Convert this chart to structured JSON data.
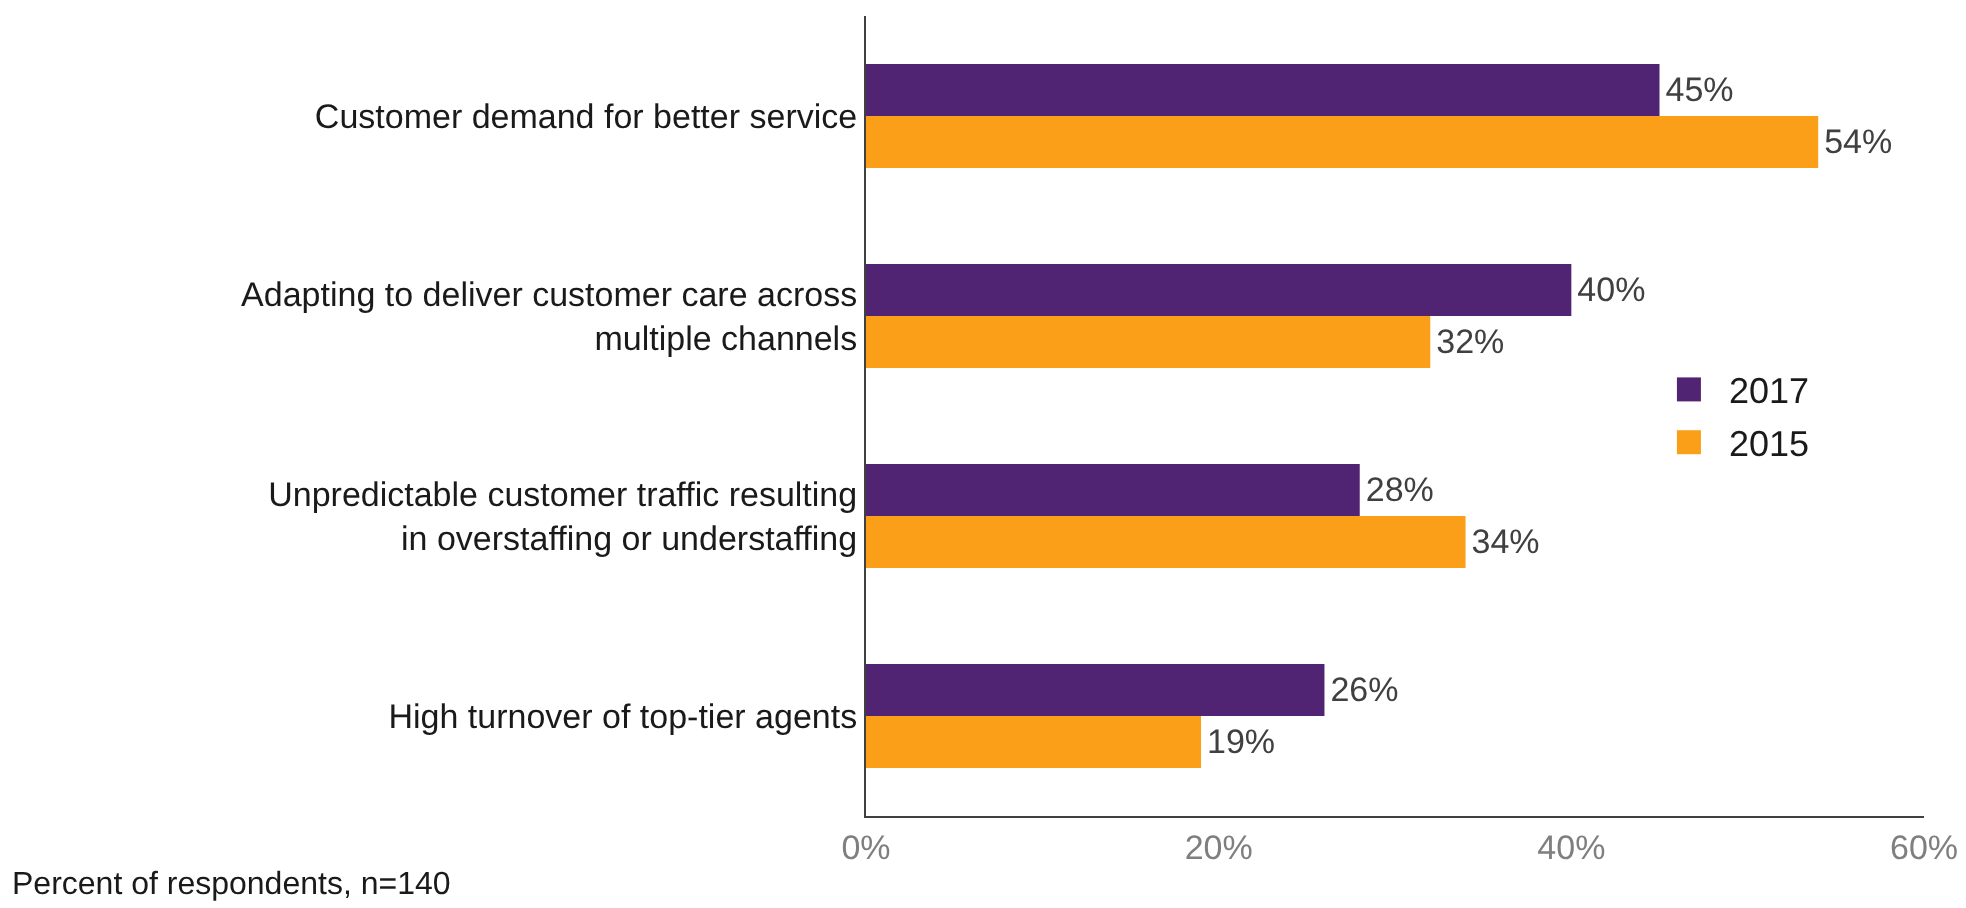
{
  "chart_data": {
    "type": "bar",
    "orientation": "horizontal",
    "categories": [
      "Customer demand for better service",
      "Adapting to deliver customer care across multiple channels",
      "Unpredictable customer traffic resulting in overstaffing or understaffing",
      "High turnover of top-tier agents"
    ],
    "series": [
      {
        "name": "2017",
        "color": "#512373",
        "values": [
          45,
          40,
          28,
          26
        ],
        "value_labels": [
          "45%",
          "40%",
          "28%",
          "26%"
        ]
      },
      {
        "name": "2015",
        "color": "#fa9f17",
        "values": [
          54,
          32,
          34,
          19
        ],
        "value_labels": [
          "54%",
          "32%",
          "34%",
          "19%"
        ]
      }
    ],
    "xlim": [
      0,
      60
    ],
    "xticks": [
      {
        "value": 0,
        "label": "0%"
      },
      {
        "value": 20,
        "label": "20%"
      },
      {
        "value": 40,
        "label": "40%"
      },
      {
        "value": 60,
        "label": "60%"
      }
    ],
    "grid": false,
    "legend": "right",
    "annotations": [
      "Percent of respondents, n=140"
    ]
  }
}
